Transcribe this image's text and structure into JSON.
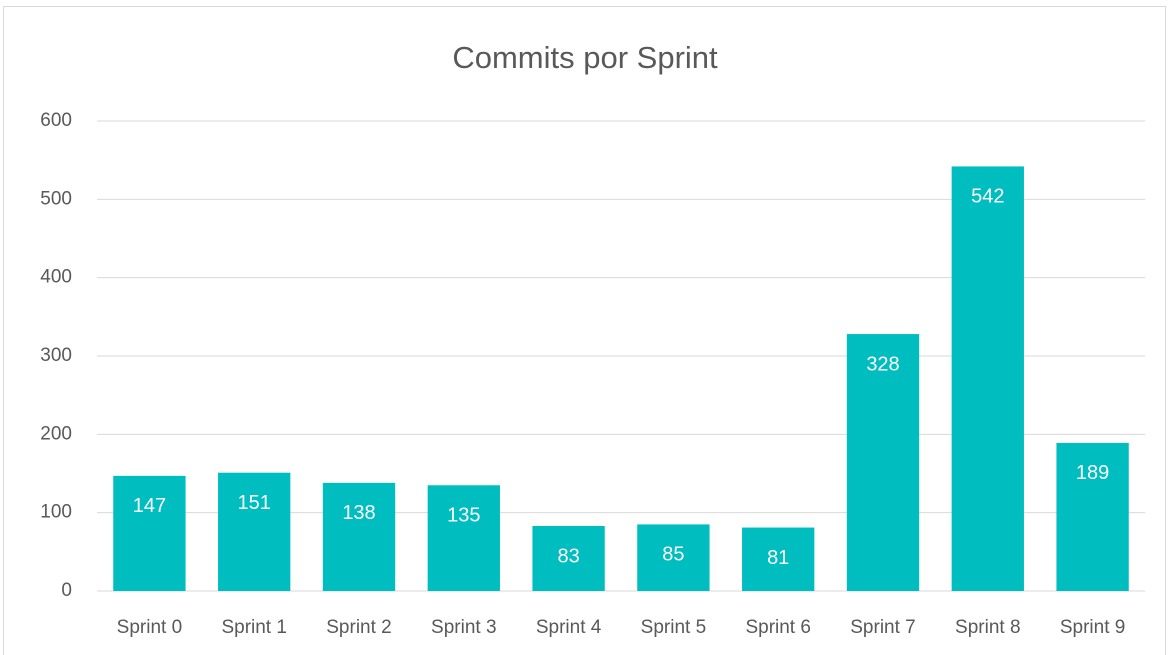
{
  "chart_data": {
    "type": "bar",
    "title": "Commits por Sprint",
    "categories": [
      "Sprint 0",
      "Sprint 1",
      "Sprint 2",
      "Sprint 3",
      "Sprint 4",
      "Sprint 5",
      "Sprint 6",
      "Sprint 7",
      "Sprint 8",
      "Sprint 9"
    ],
    "values": [
      147,
      151,
      138,
      135,
      83,
      85,
      81,
      328,
      542,
      189
    ],
    "color": "#00bdc0",
    "ylim": [
      0,
      600
    ],
    "yticks": [
      0,
      100,
      200,
      300,
      400,
      500,
      600
    ],
    "grid": true
  }
}
